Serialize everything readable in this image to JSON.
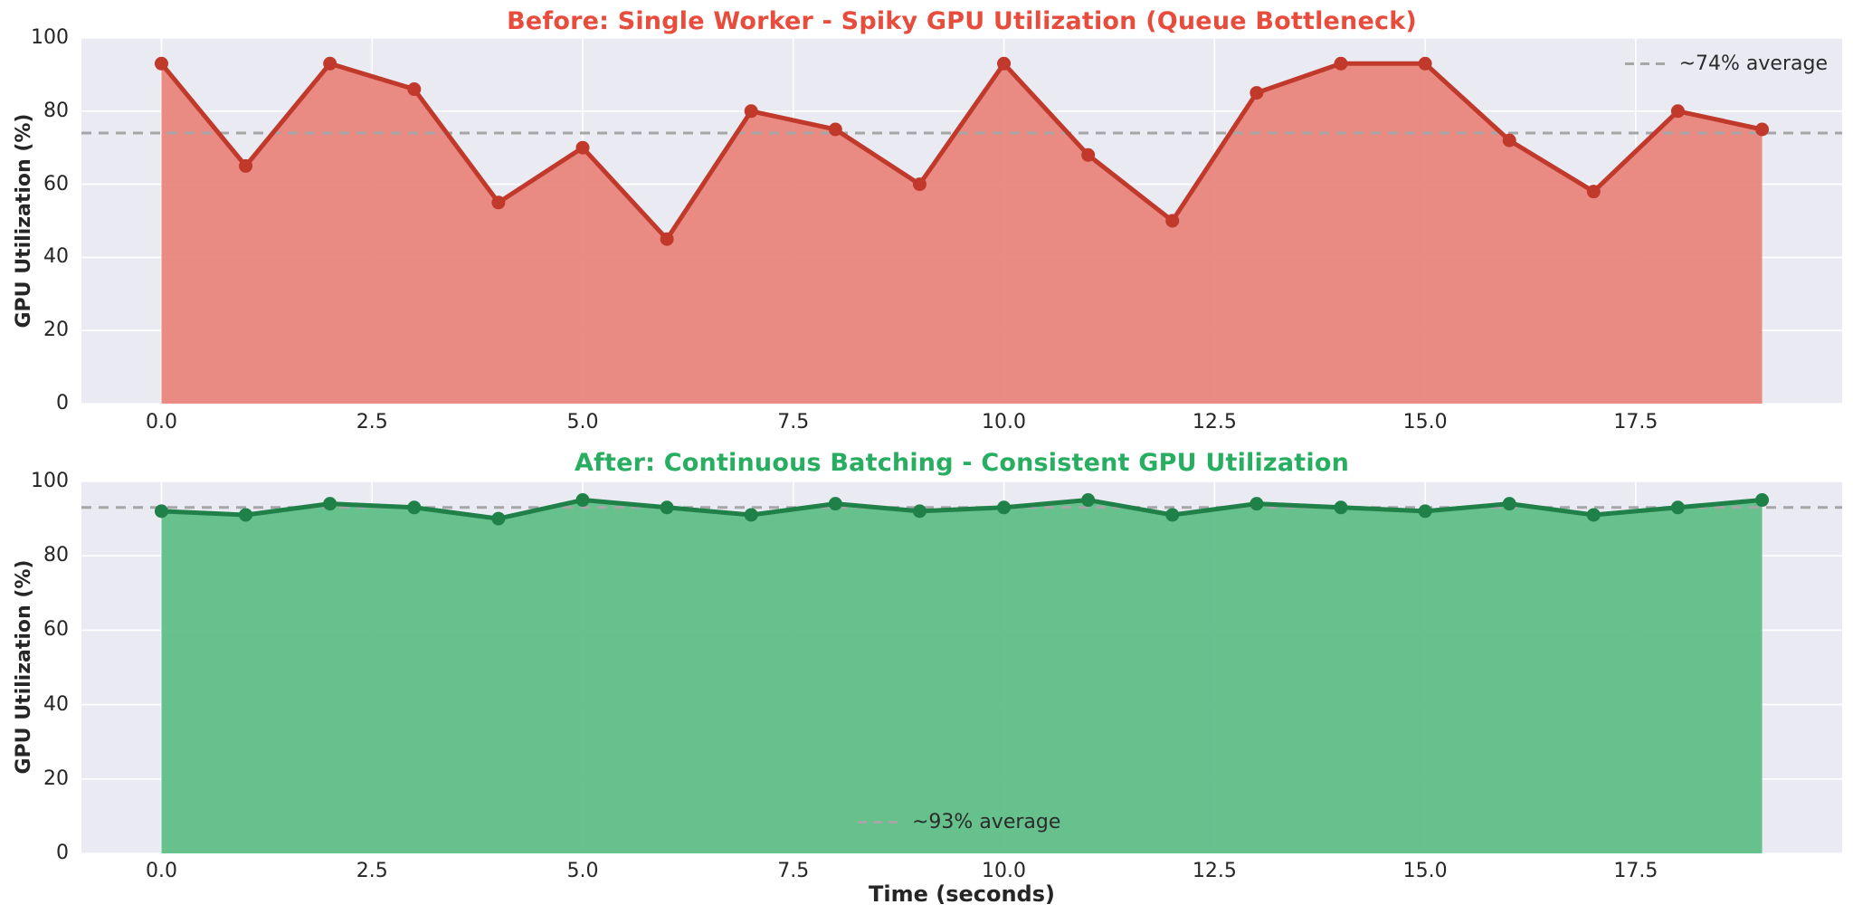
{
  "figure": {
    "background": "#ffffff",
    "plot_background": "#eaeaf2",
    "grid_color": "#ffffff",
    "tick_color": "#262626",
    "legend_text_color": "#2b2b2b"
  },
  "chart_data": [
    {
      "type": "area",
      "title": "Before: Single Worker - Spiky GPU Utilization (Queue Bottleneck)",
      "title_color": "#e74c3c",
      "line_color": "#c0392b",
      "fill_color": "#e8837b",
      "marker": "circle",
      "x": [
        0,
        1,
        2,
        3,
        4,
        5,
        6,
        7,
        8,
        9,
        10,
        11,
        12,
        13,
        14,
        15,
        16,
        17,
        18,
        19
      ],
      "values": [
        93,
        65,
        93,
        86,
        55,
        70,
        45,
        80,
        75,
        60,
        93,
        68,
        50,
        85,
        93,
        93,
        72,
        58,
        80,
        75
      ],
      "average_line": {
        "value": 74,
        "label": "~74% average",
        "color": "#a6a6a6",
        "legend_position": "upper right"
      },
      "xlabel": "",
      "ylabel": "GPU Utilization (%)",
      "ylim": [
        0,
        100
      ],
      "xlim": [
        -0.95,
        19.95
      ],
      "yticks": [
        0,
        20,
        40,
        60,
        80,
        100
      ],
      "xticks": [
        0.0,
        2.5,
        5.0,
        7.5,
        10.0,
        12.5,
        15.0,
        17.5
      ],
      "xtick_labels": [
        "0.0",
        "2.5",
        "5.0",
        "7.5",
        "10.0",
        "12.5",
        "15.0",
        "17.5"
      ],
      "grid": true
    },
    {
      "type": "area",
      "title": "After: Continuous Batching - Consistent GPU Utilization",
      "title_color": "#27ae60",
      "line_color": "#1f8048",
      "fill_color": "#5cbd85",
      "marker": "circle",
      "x": [
        0,
        1,
        2,
        3,
        4,
        5,
        6,
        7,
        8,
        9,
        10,
        11,
        12,
        13,
        14,
        15,
        16,
        17,
        18,
        19
      ],
      "values": [
        92,
        91,
        94,
        93,
        90,
        95,
        93,
        91,
        94,
        92,
        93,
        95,
        91,
        94,
        93,
        92,
        94,
        91,
        93,
        95
      ],
      "average_line": {
        "value": 93,
        "label": "~93% average",
        "color": "#a6a6a6",
        "legend_position": "lower center"
      },
      "xlabel": "Time (seconds)",
      "ylabel": "GPU Utilization (%)",
      "ylim": [
        0,
        100
      ],
      "xlim": [
        -0.95,
        19.95
      ],
      "yticks": [
        0,
        20,
        40,
        60,
        80,
        100
      ],
      "xticks": [
        0.0,
        2.5,
        5.0,
        7.5,
        10.0,
        12.5,
        15.0,
        17.5
      ],
      "xtick_labels": [
        "0.0",
        "2.5",
        "5.0",
        "7.5",
        "10.0",
        "12.5",
        "15.0",
        "17.5"
      ],
      "grid": true
    }
  ]
}
